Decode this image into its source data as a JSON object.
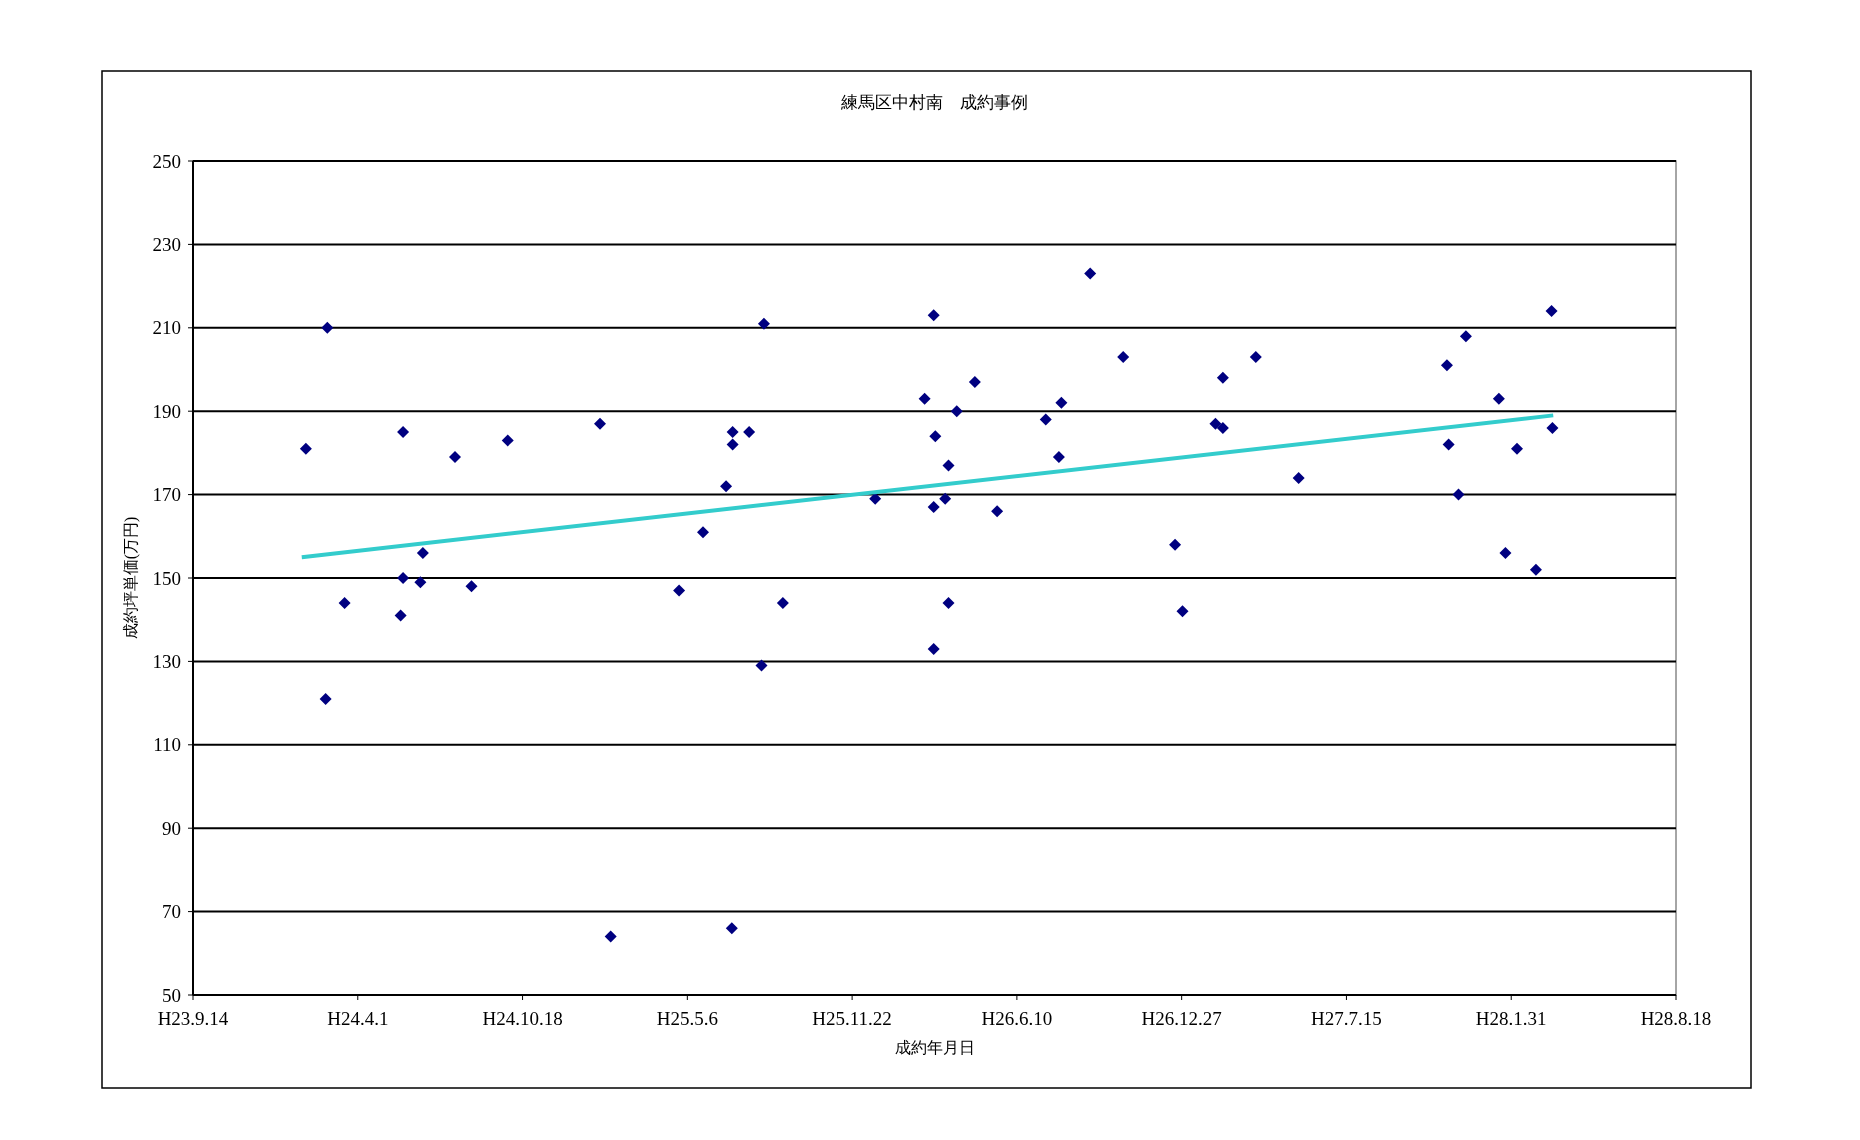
{
  "chart_data": {
    "type": "scatter",
    "title": "練馬区中村南　成約事例",
    "xlabel": "成約年月日",
    "ylabel": "成約坪単価(万円)",
    "xlim": [
      "2011-09-14",
      "2016-08-18"
    ],
    "xticks": [
      {
        "value": "2011-09-14",
        "label": "H23.9.14"
      },
      {
        "value": "2012-04-01",
        "label": "H24.4.1"
      },
      {
        "value": "2012-10-18",
        "label": "H24.10.18"
      },
      {
        "value": "2013-05-06",
        "label": "H25.5.6"
      },
      {
        "value": "2013-11-22",
        "label": "H25.11.22"
      },
      {
        "value": "2014-06-10",
        "label": "H26.6.10"
      },
      {
        "value": "2014-12-27",
        "label": "H26.12.27"
      },
      {
        "value": "2015-07-15",
        "label": "H27.7.15"
      },
      {
        "value": "2016-01-31",
        "label": "H28.1.31"
      },
      {
        "value": "2016-08-18",
        "label": "H28.8.18"
      }
    ],
    "ylim": [
      50,
      250
    ],
    "yticks": [
      50,
      70,
      90,
      110,
      130,
      150,
      170,
      190,
      210,
      230,
      250
    ],
    "grid": "y",
    "series": [
      {
        "color": "#000080",
        "marker": "diamond",
        "x": [
          "2012-01-29",
          "2012-02-24",
          "2012-02-22",
          "2012-03-16",
          "2012-05-26",
          "2012-05-26",
          "2012-05-23",
          "2012-06-19",
          "2012-06-16",
          "2012-07-28",
          "2012-08-17",
          "2012-09-30",
          "2013-01-20",
          "2013-02-02",
          "2013-04-26",
          "2013-05-25",
          "2013-06-22",
          "2013-06-30",
          "2013-06-30",
          "2013-06-29",
          "2013-07-20",
          "2013-08-04",
          "2013-08-07",
          "2013-08-30",
          "2013-12-20",
          "2014-02-18",
          "2014-03-01",
          "2014-03-03",
          "2014-03-01",
          "2014-03-01",
          "2014-03-15",
          "2014-03-19",
          "2014-03-19",
          "2014-03-29",
          "2014-04-20",
          "2014-05-17",
          "2014-07-15",
          "2014-08-03",
          "2014-07-31",
          "2014-09-07",
          "2014-10-17",
          "2014-12-19",
          "2014-12-28",
          "2015-02-06",
          "2015-02-15",
          "2015-02-15",
          "2015-03-27",
          "2015-05-18",
          "2015-11-14",
          "2015-11-16",
          "2015-12-07",
          "2015-11-28",
          "2016-01-16",
          "2016-01-24",
          "2016-02-07",
          "2016-03-01",
          "2016-03-20",
          "2016-03-21"
        ],
        "values": [
          181,
          210,
          121,
          144,
          185,
          150,
          141,
          156,
          149,
          179,
          148,
          183,
          187,
          64,
          147,
          161,
          172,
          185,
          182,
          66,
          185,
          129,
          211,
          144,
          169,
          193,
          213,
          184,
          167,
          133,
          169,
          177,
          144,
          190,
          197,
          166,
          188,
          192,
          179,
          223,
          203,
          158,
          142,
          187,
          186,
          198,
          203,
          174,
          201,
          182,
          208,
          170,
          193,
          156,
          181,
          152,
          214,
          186
        ]
      },
      {
        "type": "line",
        "color": "#33cccc",
        "line_style": "solid",
        "x": [
          "2012-01-24",
          "2016-03-22"
        ],
        "values": [
          155,
          189
        ]
      }
    ]
  }
}
